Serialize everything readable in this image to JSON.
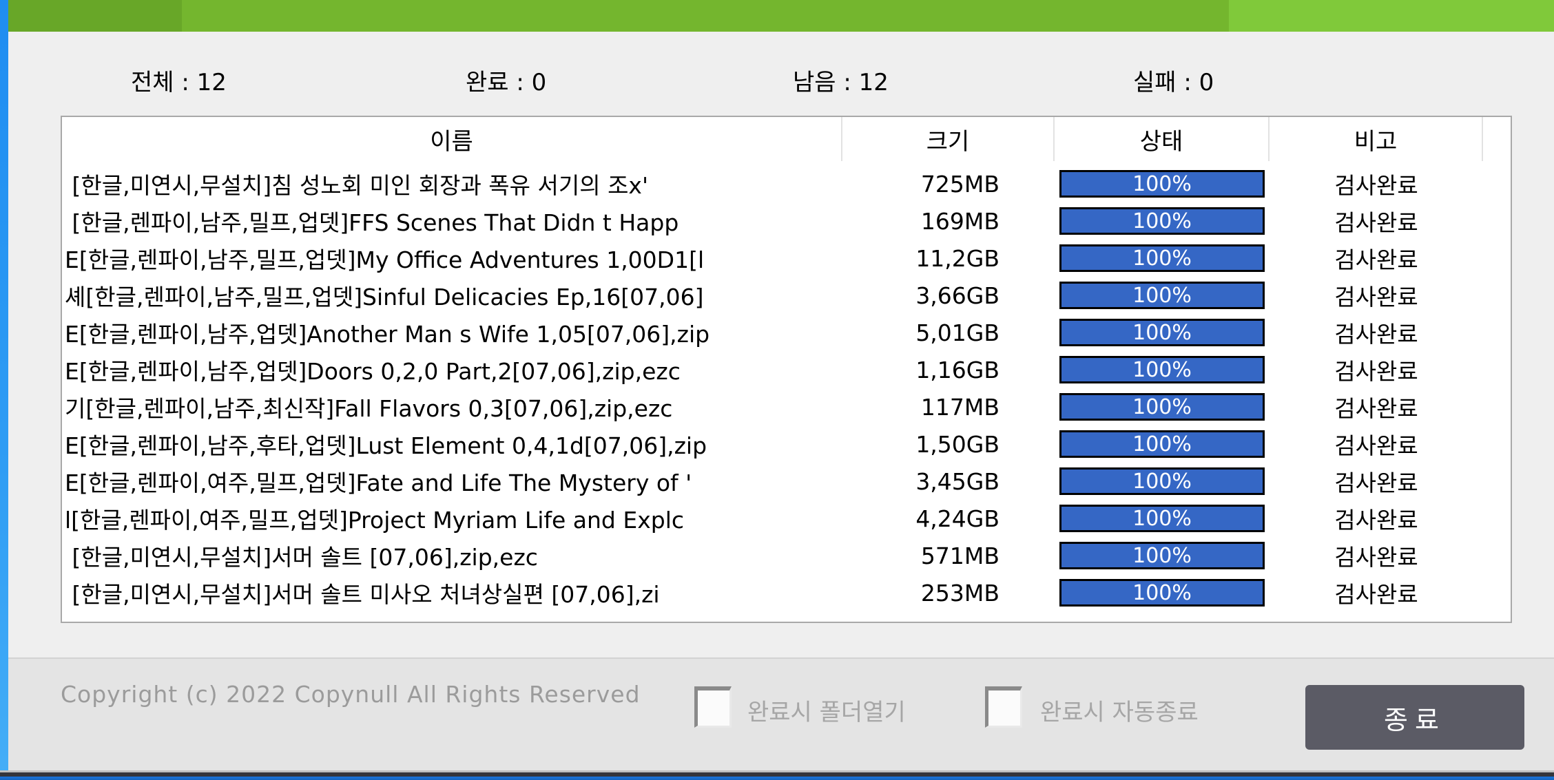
{
  "colors": {
    "titlebar_green": "#74b62e",
    "titlebar_green_dark": "#68a728",
    "titlebar_green_light": "#80c93a",
    "left_strip_blue": "#2f9df4",
    "progress_fill_blue": "#3567c5",
    "exit_button_gray": "#5b5b65",
    "bottom_strip_blue": "#1b74dd"
  },
  "stats": {
    "total": "전체 : 12",
    "done": "완료 : 0",
    "remaining": "남음 : 12",
    "failed": "실패 : 0"
  },
  "table": {
    "columns": [
      "이름",
      "크기",
      "상태",
      "비고"
    ],
    "rows": [
      {
        "name": " [한글,미연시,무설치]침 성노회 미인 회장과 폭유 서기의 조x'",
        "size": "725MB",
        "progress": "100%",
        "note": "검사완료"
      },
      {
        "name": " [한글,렌파이,남주,밀프,업뎃]FFS Scenes That Didn t Happ",
        "size": "169MB",
        "progress": "100%",
        "note": "검사완료"
      },
      {
        "name": "E[한글,렌파이,남주,밀프,업뎃]My Office Adventures 1,00D1[l",
        "size": "11,2GB",
        "progress": "100%",
        "note": "검사완료"
      },
      {
        "name": "셰[한글,렌파이,남주,밀프,업뎃]Sinful Delicacies Ep,16[07,06]",
        "size": "3,66GB",
        "progress": "100%",
        "note": "검사완료"
      },
      {
        "name": "E[한글,렌파이,남주,업뎃]Another Man s Wife 1,05[07,06],zip",
        "size": "5,01GB",
        "progress": "100%",
        "note": "검사완료"
      },
      {
        "name": "E[한글,렌파이,남주,업뎃]Doors 0,2,0 Part,2[07,06],zip,ezc",
        "size": "1,16GB",
        "progress": "100%",
        "note": "검사완료"
      },
      {
        "name": "기[한글,렌파이,남주,최신작]Fall Flavors 0,3[07,06],zip,ezc",
        "size": "117MB",
        "progress": "100%",
        "note": "검사완료"
      },
      {
        "name": "E[한글,렌파이,남주,후타,업뎃]Lust Element 0,4,1d[07,06],zip",
        "size": "1,50GB",
        "progress": "100%",
        "note": "검사완료"
      },
      {
        "name": "E[한글,렌파이,여주,밀프,업뎃]Fate and Life The Mystery of '",
        "size": "3,45GB",
        "progress": "100%",
        "note": "검사완료"
      },
      {
        "name": "l[한글,렌파이,여주,밀프,업뎃]Project Myriam Life and Explc",
        "size": "4,24GB",
        "progress": "100%",
        "note": "검사완료"
      },
      {
        "name": " [한글,미연시,무설치]서머 솔트 [07,06],zip,ezc",
        "size": "571MB",
        "progress": "100%",
        "note": "검사완료"
      },
      {
        "name": " [한글,미연시,무설치]서머 솔트 미사오 처녀상실편 [07,06],zi",
        "size": "253MB",
        "progress": "100%",
        "note": "검사완료"
      }
    ]
  },
  "footer": {
    "copyright": "Copyright (c) 2022 Copynull All Rights Reserved",
    "checkbox_open_folder_label": "완료시 폴더열기",
    "checkbox_open_folder_checked": false,
    "checkbox_auto_exit_label": "완료시 자동종료",
    "checkbox_auto_exit_checked": false,
    "exit_button_label": "종료"
  }
}
